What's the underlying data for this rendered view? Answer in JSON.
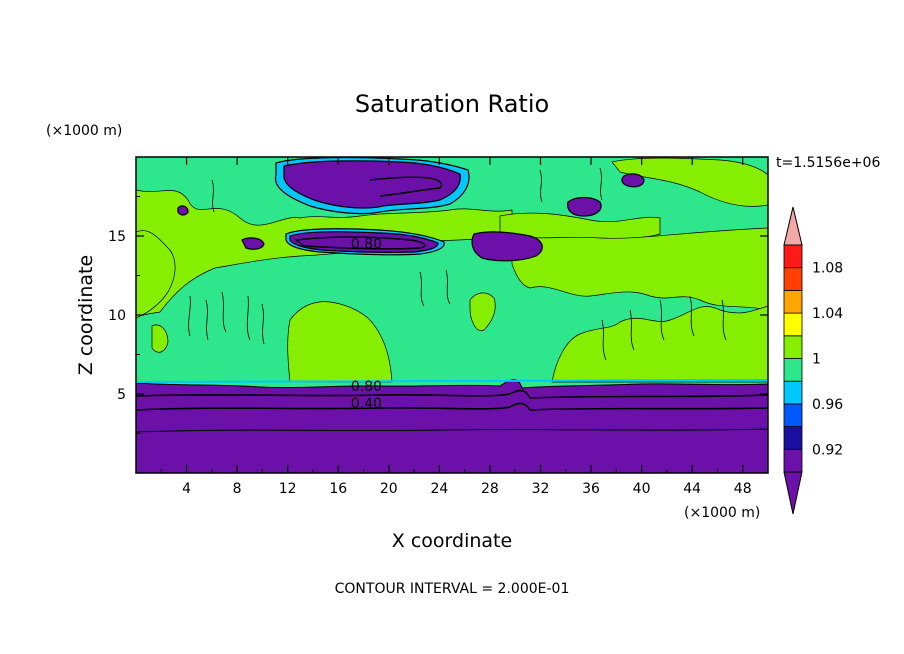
{
  "chart_data": {
    "type": "heatmap",
    "title": "Saturation Ratio",
    "xlabel": "X coordinate",
    "ylabel": "Z coordinate",
    "x_units": "(×1000 m)",
    "y_units": "(×1000 m)",
    "time_label": "t=1.5156e+06",
    "footer": "CONTOUR INTERVAL = 2.000E-01",
    "xlim": [
      0,
      50
    ],
    "ylim": [
      0,
      20
    ],
    "x_ticks": [
      "4",
      "8",
      "12",
      "16",
      "20",
      "24",
      "28",
      "32",
      "36",
      "40",
      "44",
      "48"
    ],
    "y_ticks": [
      "5",
      "10",
      "15"
    ],
    "contour_labels": [
      {
        "text": "0.80",
        "x": 17,
        "z": 14.2
      },
      {
        "text": "0.80",
        "x": 17,
        "z": 5.2
      },
      {
        "text": "0.40",
        "x": 17,
        "z": 4.1
      }
    ],
    "colorbar": {
      "tick_labels": [
        "0.92",
        "0.96",
        "1",
        "1.04",
        "1.08"
      ],
      "bins": [
        {
          "color": "#6b10a8"
        },
        {
          "color": "#1a0fa0"
        },
        {
          "color": "#0058ff"
        },
        {
          "color": "#00c8ff"
        },
        {
          "color": "#2ee68c"
        },
        {
          "color": "#86ee00"
        },
        {
          "color": "#ffff00"
        },
        {
          "color": "#ffa500"
        },
        {
          "color": "#ff4000"
        },
        {
          "color": "#ff1a1a"
        }
      ],
      "over_color": "#f4a8a8",
      "under_color": "#6b10a8"
    },
    "regions": {
      "dry_layer": {
        "color": "#6b10a8",
        "z_top": 5.6
      },
      "background": {
        "color": "#2ee68c"
      },
      "saturated": {
        "color": "#86ee00"
      }
    }
  }
}
